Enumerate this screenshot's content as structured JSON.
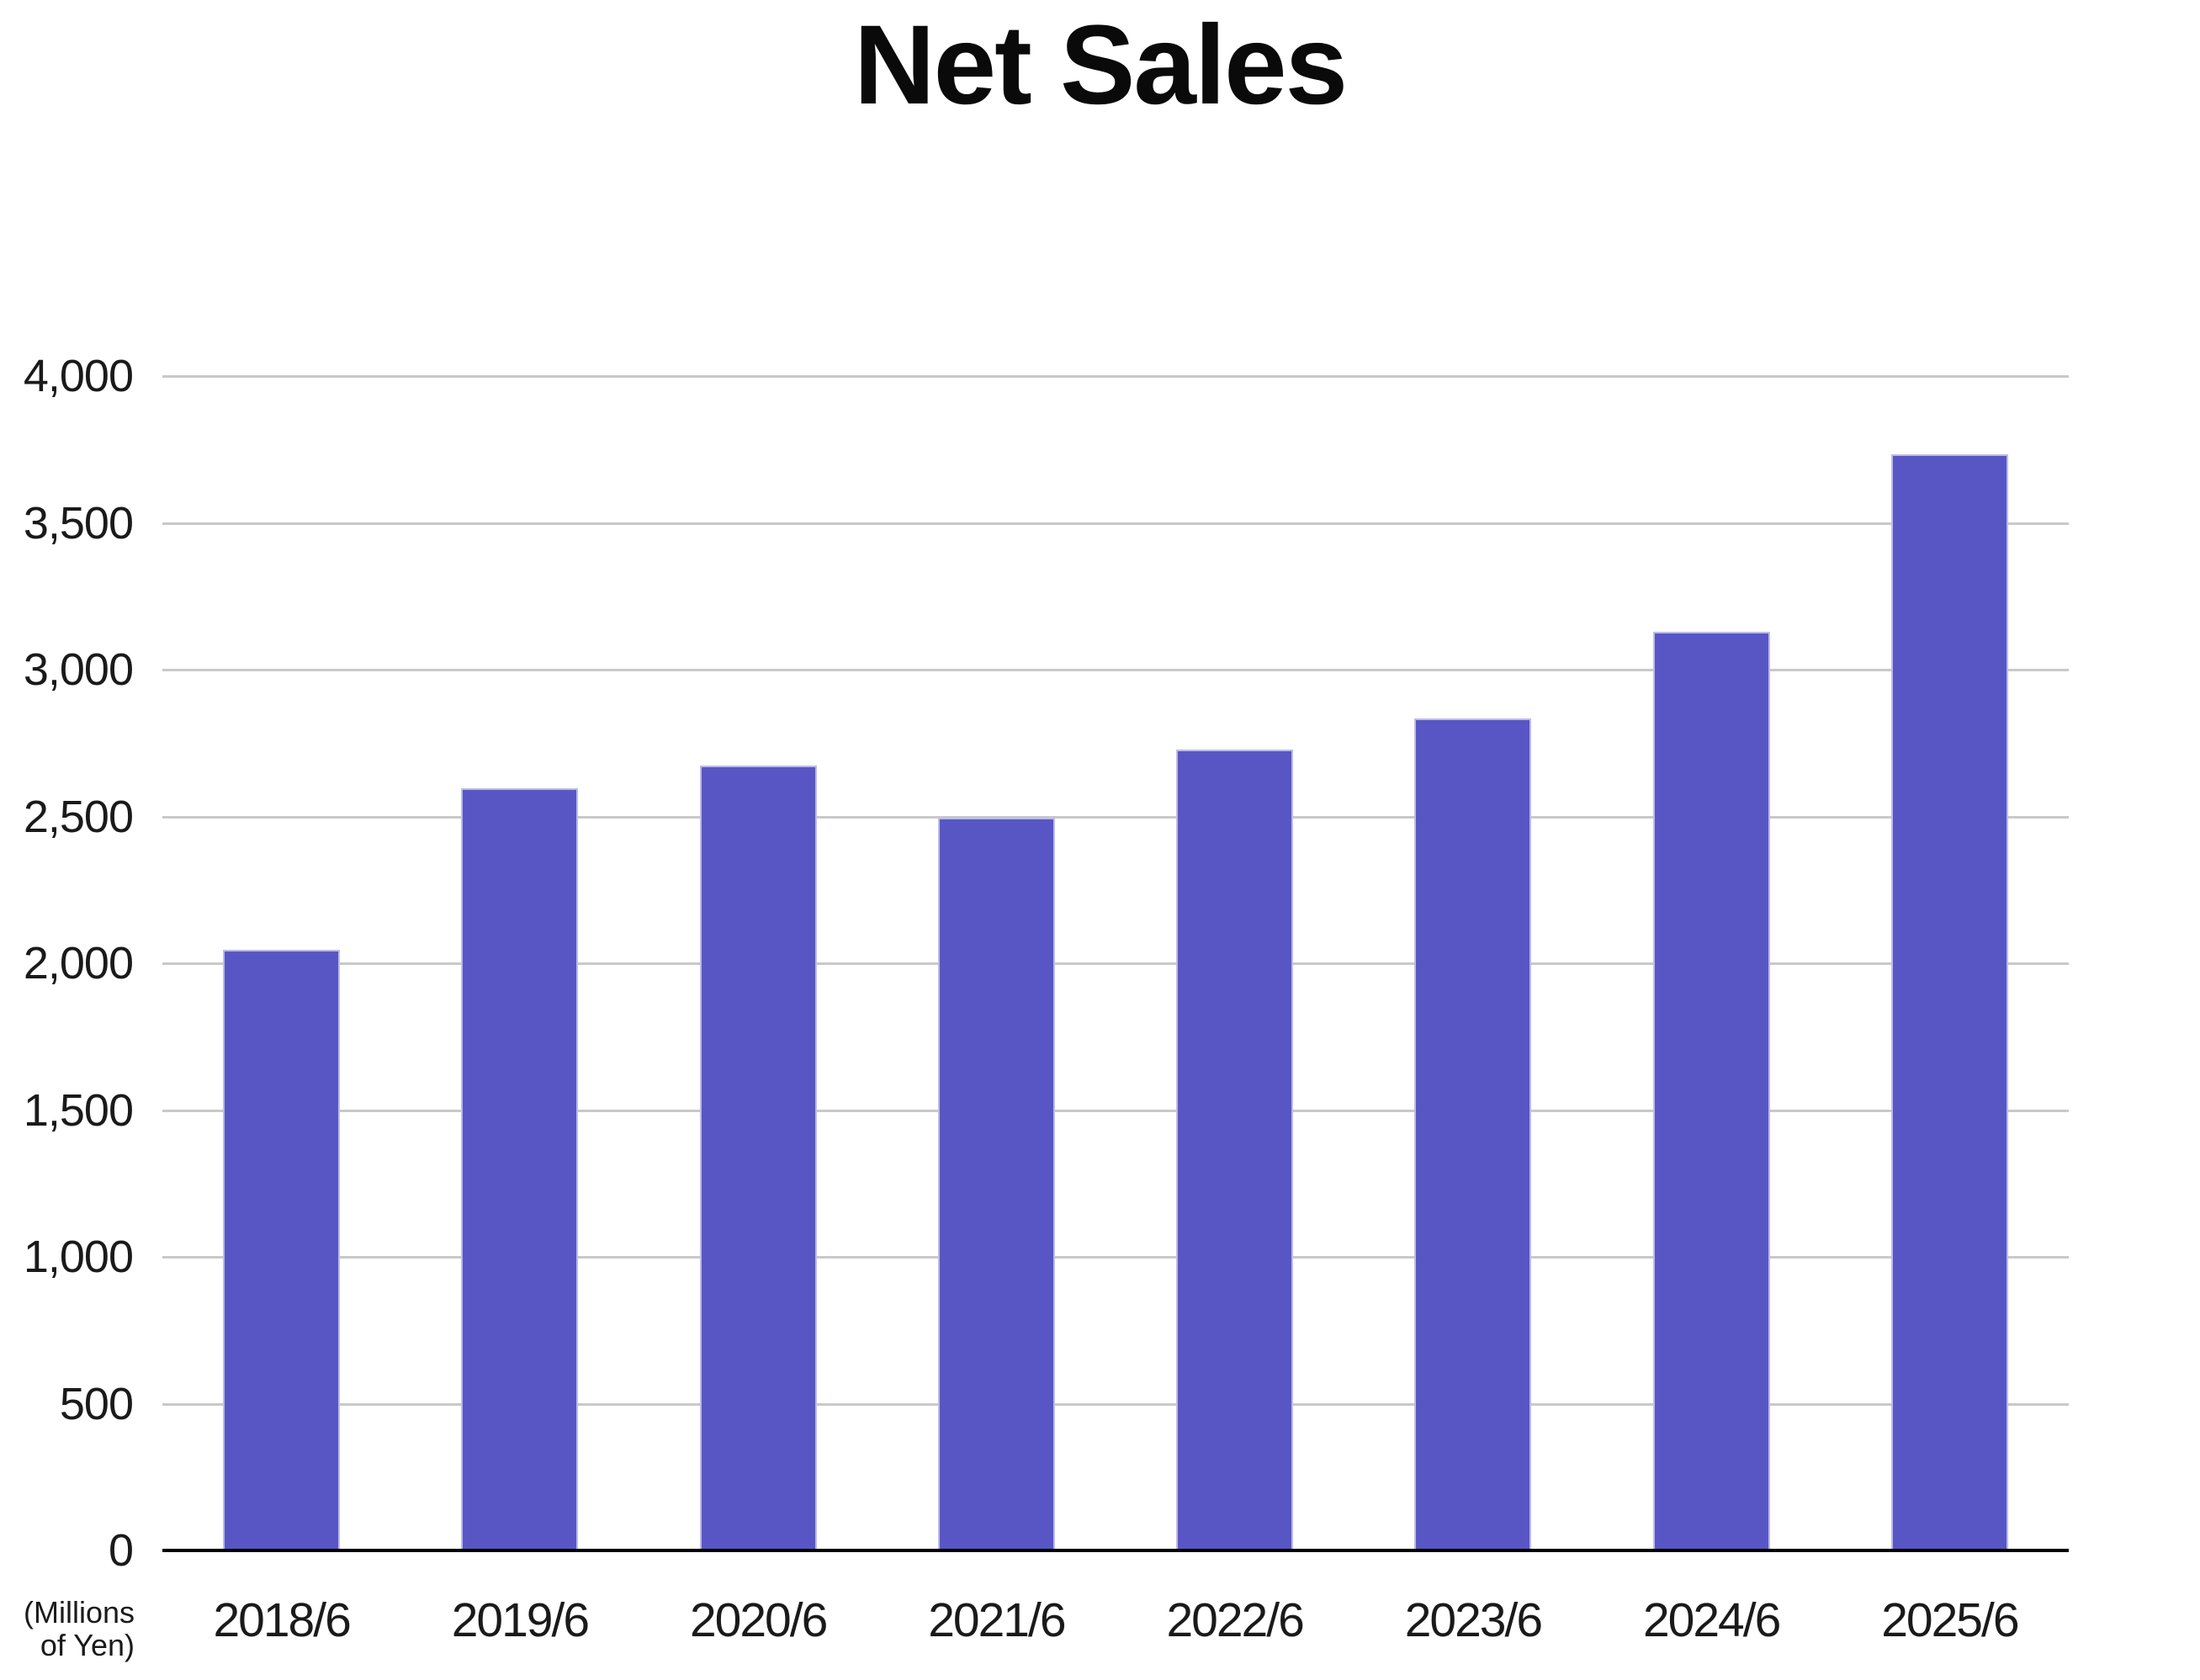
{
  "title": "Net Sales",
  "unit_label": {
    "line1": "(Millions",
    "line2": "of Yen)"
  },
  "colors": {
    "background": "#FFFFFF",
    "bar": "#5856C4",
    "bar_border": "#BCBBE8",
    "gridline": "#C9C9C9",
    "axis_line": "#000000",
    "tick_text": "#1A1A1A",
    "title_text": "#0A0A0A"
  },
  "chart_data": {
    "type": "bar",
    "title": "Net Sales",
    "categories": [
      "2018/6",
      "2019/6",
      "2020/6",
      "2021/6",
      "2022/6",
      "2023/6",
      "2024/6",
      "2025/6"
    ],
    "values": [
      2045,
      2596,
      2672,
      2497,
      2729,
      2834,
      3129,
      3733
    ],
    "unit": "Millions of Yen",
    "xlabel": "",
    "ylabel": "(Millions of Yen)",
    "ylim": [
      0,
      4000
    ],
    "ytick_step": 500,
    "yticks": [
      "0",
      "500",
      "1,000",
      "1,500",
      "2,000",
      "2,500",
      "3,000",
      "3,500",
      "4,000"
    ],
    "grid": true,
    "legend_position": "none"
  }
}
